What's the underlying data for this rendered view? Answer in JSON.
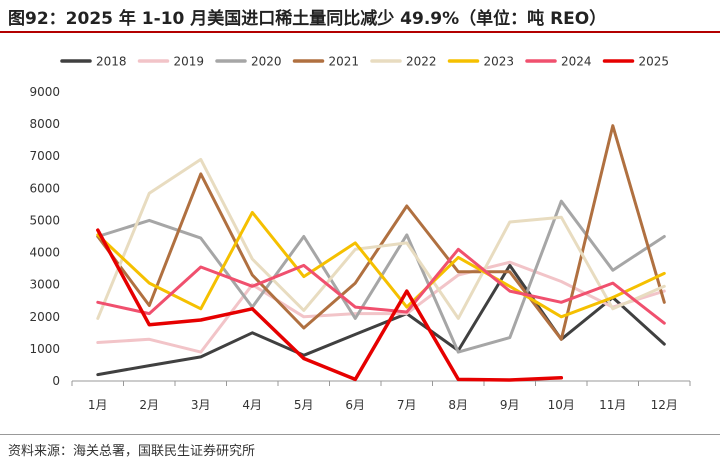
{
  "title": "图92：2025 年 1-10 月美国进口稀土量同比减少 49.9%（单位：吨 REO）",
  "source": "资料来源：海关总署，国联民生证券研究所",
  "chart_data": {
    "type": "line",
    "categories": [
      "1月",
      "2月",
      "3月",
      "4月",
      "5月",
      "6月",
      "7月",
      "8月",
      "9月",
      "10月",
      "11月",
      "12月"
    ],
    "yticks": [
      "0",
      "1000",
      "2000",
      "3000",
      "4000",
      "5000",
      "6000",
      "7000",
      "8000",
      "9000"
    ],
    "ylim": [
      0,
      9000
    ],
    "grid": false,
    "legend_position": "top",
    "series": [
      {
        "name": "2018",
        "color": "#404040",
        "width": 3,
        "values": [
          200,
          480,
          750,
          1500,
          800,
          1450,
          2100,
          950,
          3600,
          1300,
          2600,
          1150
        ]
      },
      {
        "name": "2019",
        "color": "#f2c4c8",
        "width": 3,
        "values": [
          1200,
          1300,
          900,
          3000,
          2000,
          2100,
          2100,
          3300,
          3700,
          3100,
          2300,
          2800
        ]
      },
      {
        "name": "2020",
        "color": "#a6a6a6",
        "width": 3,
        "values": [
          4500,
          5000,
          4450,
          2300,
          4500,
          1950,
          4550,
          900,
          1350,
          5600,
          3450,
          4500
        ]
      },
      {
        "name": "2021",
        "color": "#b07040",
        "width": 3,
        "values": [
          4500,
          2350,
          6450,
          3300,
          1650,
          3050,
          5450,
          3400,
          3400,
          1300,
          7950,
          2450
        ]
      },
      {
        "name": "2022",
        "color": "#e8dcc0",
        "width": 3,
        "values": [
          1950,
          5850,
          6900,
          3800,
          2200,
          4100,
          4300,
          1950,
          4950,
          5100,
          2250,
          2950
        ]
      },
      {
        "name": "2023",
        "color": "#f5c000",
        "width": 3,
        "values": [
          4550,
          3050,
          2250,
          5250,
          3250,
          4300,
          2300,
          3850,
          2950,
          2000,
          2600,
          3350
        ]
      },
      {
        "name": "2024",
        "color": "#f0506e",
        "width": 3,
        "values": [
          2450,
          2100,
          3550,
          2950,
          3600,
          2300,
          2150,
          4100,
          2800,
          2450,
          3050,
          1800
        ]
      },
      {
        "name": "2025",
        "color": "#e60000",
        "width": 3.5,
        "values": [
          4700,
          1750,
          1900,
          2250,
          700,
          50,
          2800,
          50,
          30,
          100,
          null,
          null
        ]
      }
    ]
  }
}
